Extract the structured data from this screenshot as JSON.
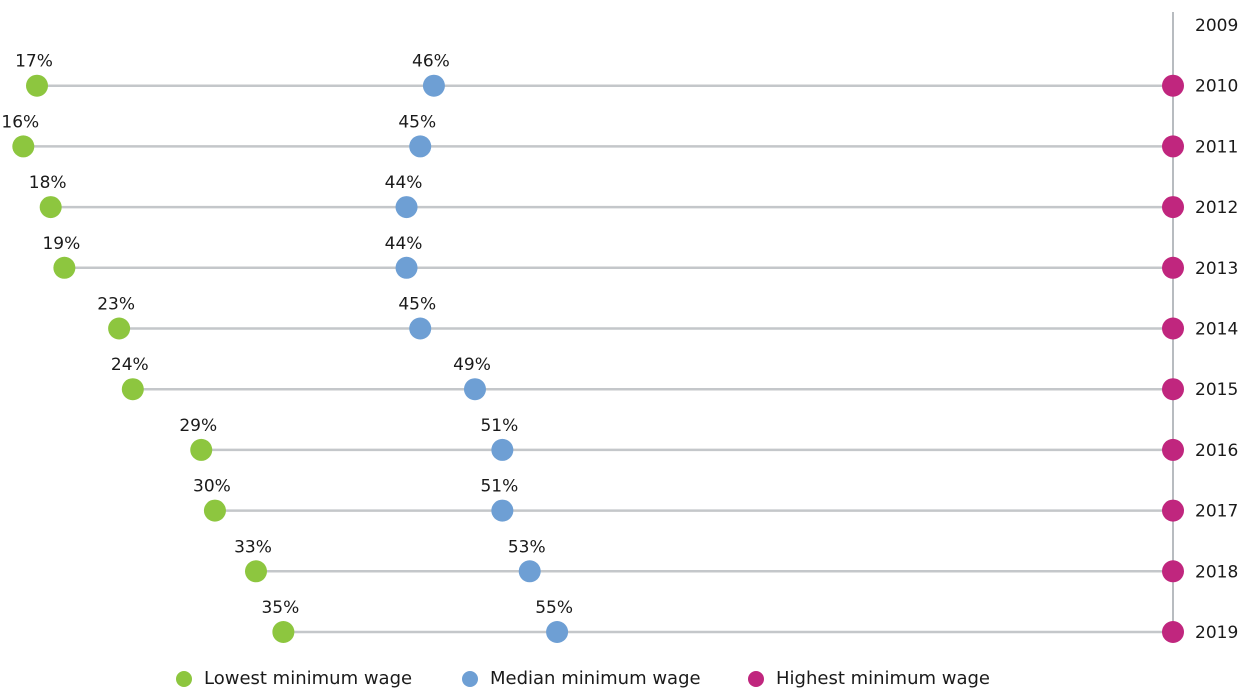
{
  "chart_data": {
    "type": "dot-range",
    "title": "",
    "xlabel": "",
    "ylabel": "",
    "xlim": [
      17,
      100
    ],
    "categories": [
      "2009",
      "2010",
      "2011",
      "2012",
      "2013",
      "2014",
      "2015",
      "2016",
      "2017",
      "2018",
      "2019"
    ],
    "series": [
      {
        "name": "Lowest minimum wage",
        "color": "#8dc63f",
        "points": [
          {
            "year": "2010",
            "value": 17,
            "label": "17%"
          },
          {
            "year": "2011",
            "value": 16,
            "label": "16%"
          },
          {
            "year": "2012",
            "value": 18,
            "label": "18%"
          },
          {
            "year": "2013",
            "value": 19,
            "label": "19%"
          },
          {
            "year": "2014",
            "value": 23,
            "label": "23%"
          },
          {
            "year": "2015",
            "value": 24,
            "label": "24%"
          },
          {
            "year": "2016",
            "value": 29,
            "label": "29%"
          },
          {
            "year": "2017",
            "value": 30,
            "label": "30%"
          },
          {
            "year": "2018",
            "value": 33,
            "label": "33%"
          },
          {
            "year": "2019",
            "value": 35,
            "label": "35%"
          }
        ]
      },
      {
        "name": "Median minimum wage",
        "color": "#6e9fd4",
        "points": [
          {
            "year": "2010",
            "value": 46,
            "label": "46%"
          },
          {
            "year": "2011",
            "value": 45,
            "label": "45%"
          },
          {
            "year": "2012",
            "value": 44,
            "label": "44%"
          },
          {
            "year": "2013",
            "value": 44,
            "label": "44%"
          },
          {
            "year": "2014",
            "value": 45,
            "label": "45%"
          },
          {
            "year": "2015",
            "value": 49,
            "label": "49%"
          },
          {
            "year": "2016",
            "value": 51,
            "label": "51%"
          },
          {
            "year": "2017",
            "value": 51,
            "label": "51%"
          },
          {
            "year": "2018",
            "value": 53,
            "label": "53%"
          },
          {
            "year": "2019",
            "value": 55,
            "label": "55%"
          }
        ]
      },
      {
        "name": "Highest minimum wage",
        "color": "#c0267e",
        "points": [
          {
            "year": "2010",
            "value": 100
          },
          {
            "year": "2011",
            "value": 100
          },
          {
            "year": "2012",
            "value": 100
          },
          {
            "year": "2013",
            "value": 100
          },
          {
            "year": "2014",
            "value": 100
          },
          {
            "year": "2015",
            "value": 100
          },
          {
            "year": "2016",
            "value": 100
          },
          {
            "year": "2017",
            "value": 100
          },
          {
            "year": "2018",
            "value": 100
          },
          {
            "year": "2019",
            "value": 100
          }
        ]
      }
    ],
    "legend_position": "bottom",
    "grid": false
  }
}
